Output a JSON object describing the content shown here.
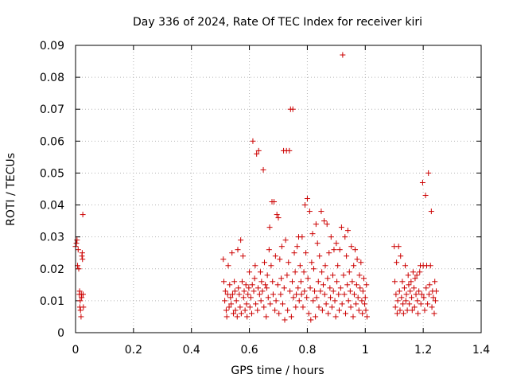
{
  "chart_data": {
    "type": "scatter",
    "title": "Day 336 of 2024, Rate Of TEC Index for receiver kiri",
    "xlabel": "GPS time / hours",
    "ylabel": "ROTI / TECUs",
    "xlim": [
      0,
      1.4
    ],
    "ylim": [
      0,
      0.09
    ],
    "grid": true,
    "marker": "+",
    "series_color": "#cc0000",
    "x_ticks": [
      0,
      0.2,
      0.4,
      0.6,
      0.8,
      1,
      1.2,
      1.4
    ],
    "x_tick_labels": [
      "0",
      "0.2",
      "0.4",
      "0.6",
      "0.8",
      "1",
      "1.2",
      "1.4"
    ],
    "y_ticks": [
      0,
      0.01,
      0.02,
      0.03,
      0.04,
      0.05,
      0.06,
      0.07,
      0.08,
      0.09
    ],
    "y_tick_labels": [
      "0",
      "0.01",
      "0.02",
      "0.03",
      "0.04",
      "0.05",
      "0.06",
      "0.07",
      "0.08",
      "0.09"
    ],
    "series": [
      {
        "name": "ROTI",
        "points": [
          [
            0.0,
            0.027
          ],
          [
            0.003,
            0.028
          ],
          [
            0.005,
            0.029
          ],
          [
            0.007,
            0.021
          ],
          [
            0.009,
            0.026
          ],
          [
            0.011,
            0.02
          ],
          [
            0.013,
            0.012
          ],
          [
            0.014,
            0.013
          ],
          [
            0.015,
            0.008
          ],
          [
            0.016,
            0.01
          ],
          [
            0.017,
            0.007
          ],
          [
            0.019,
            0.005
          ],
          [
            0.02,
            0.012
          ],
          [
            0.021,
            0.011
          ],
          [
            0.022,
            0.024
          ],
          [
            0.023,
            0.025
          ],
          [
            0.024,
            0.023
          ],
          [
            0.025,
            0.037
          ],
          [
            0.026,
            0.012
          ],
          [
            0.027,
            0.008
          ],
          [
            0.51,
            0.023
          ],
          [
            0.512,
            0.016
          ],
          [
            0.515,
            0.01
          ],
          [
            0.517,
            0.013
          ],
          [
            0.52,
            0.007
          ],
          [
            0.522,
            0.005
          ],
          [
            0.525,
            0.012
          ],
          [
            0.527,
            0.021
          ],
          [
            0.53,
            0.008
          ],
          [
            0.532,
            0.015
          ],
          [
            0.535,
            0.011
          ],
          [
            0.537,
            0.009
          ],
          [
            0.54,
            0.025
          ],
          [
            0.542,
            0.012
          ],
          [
            0.545,
            0.006
          ],
          [
            0.548,
            0.016
          ],
          [
            0.55,
            0.013
          ],
          [
            0.552,
            0.007
          ],
          [
            0.555,
            0.01
          ],
          [
            0.558,
            0.005
          ],
          [
            0.56,
            0.026
          ],
          [
            0.562,
            0.014
          ],
          [
            0.565,
            0.012
          ],
          [
            0.568,
            0.008
          ],
          [
            0.57,
            0.029
          ],
          [
            0.572,
            0.006
          ],
          [
            0.575,
            0.016
          ],
          [
            0.578,
            0.024
          ],
          [
            0.58,
            0.011
          ],
          [
            0.582,
            0.013
          ],
          [
            0.585,
            0.007
          ],
          [
            0.588,
            0.015
          ],
          [
            0.59,
            0.009
          ],
          [
            0.592,
            0.005
          ],
          [
            0.595,
            0.012
          ],
          [
            0.598,
            0.014
          ],
          [
            0.6,
            0.019
          ],
          [
            0.602,
            0.008
          ],
          [
            0.605,
            0.011
          ],
          [
            0.608,
            0.006
          ],
          [
            0.61,
            0.015
          ],
          [
            0.612,
            0.06
          ],
          [
            0.615,
            0.013
          ],
          [
            0.618,
            0.017
          ],
          [
            0.62,
            0.021
          ],
          [
            0.622,
            0.009
          ],
          [
            0.625,
            0.056
          ],
          [
            0.628,
            0.007
          ],
          [
            0.63,
            0.014
          ],
          [
            0.632,
            0.057
          ],
          [
            0.635,
            0.012
          ],
          [
            0.638,
            0.019
          ],
          [
            0.64,
            0.01
          ],
          [
            0.642,
            0.016
          ],
          [
            0.645,
            0.013
          ],
          [
            0.648,
            0.051
          ],
          [
            0.65,
            0.008
          ],
          [
            0.652,
            0.022
          ],
          [
            0.655,
            0.015
          ],
          [
            0.658,
            0.005
          ],
          [
            0.66,
            0.014
          ],
          [
            0.662,
            0.018
          ],
          [
            0.665,
            0.011
          ],
          [
            0.668,
            0.026
          ],
          [
            0.67,
            0.033
          ],
          [
            0.672,
            0.009
          ],
          [
            0.675,
            0.021
          ],
          [
            0.678,
            0.041
          ],
          [
            0.68,
            0.016
          ],
          [
            0.682,
            0.012
          ],
          [
            0.685,
            0.041
          ],
          [
            0.688,
            0.007
          ],
          [
            0.69,
            0.024
          ],
          [
            0.692,
            0.01
          ],
          [
            0.695,
            0.037
          ],
          [
            0.698,
            0.015
          ],
          [
            0.7,
            0.036
          ],
          [
            0.702,
            0.006
          ],
          [
            0.705,
            0.023
          ],
          [
            0.708,
            0.012
          ],
          [
            0.71,
            0.017
          ],
          [
            0.712,
            0.027
          ],
          [
            0.715,
            0.009
          ],
          [
            0.718,
            0.057
          ],
          [
            0.72,
            0.014
          ],
          [
            0.722,
            0.004
          ],
          [
            0.725,
            0.029
          ],
          [
            0.728,
            0.057
          ],
          [
            0.73,
            0.018
          ],
          [
            0.732,
            0.007
          ],
          [
            0.735,
            0.022
          ],
          [
            0.738,
            0.057
          ],
          [
            0.74,
            0.013
          ],
          [
            0.742,
            0.07
          ],
          [
            0.745,
            0.005
          ],
          [
            0.748,
            0.016
          ],
          [
            0.75,
            0.07
          ],
          [
            0.752,
            0.011
          ],
          [
            0.755,
            0.025
          ],
          [
            0.758,
            0.019
          ],
          [
            0.76,
            0.008
          ],
          [
            0.762,
            0.012
          ],
          [
            0.765,
            0.027
          ],
          [
            0.768,
            0.014
          ],
          [
            0.77,
            0.03
          ],
          [
            0.772,
            0.01
          ],
          [
            0.775,
            0.021
          ],
          [
            0.778,
            0.016
          ],
          [
            0.78,
            0.012
          ],
          [
            0.782,
            0.03
          ],
          [
            0.785,
            0.008
          ],
          [
            0.788,
            0.019
          ],
          [
            0.79,
            0.013
          ],
          [
            0.792,
            0.04
          ],
          [
            0.795,
            0.025
          ],
          [
            0.798,
            0.011
          ],
          [
            0.8,
            0.042
          ],
          [
            0.802,
            0.017
          ],
          [
            0.805,
            0.006
          ],
          [
            0.808,
            0.038
          ],
          [
            0.81,
            0.014
          ],
          [
            0.812,
            0.004
          ],
          [
            0.815,
            0.022
          ],
          [
            0.818,
            0.031
          ],
          [
            0.82,
            0.01
          ],
          [
            0.822,
            0.02
          ],
          [
            0.825,
            0.013
          ],
          [
            0.828,
            0.005
          ],
          [
            0.83,
            0.034
          ],
          [
            0.832,
            0.011
          ],
          [
            0.835,
            0.028
          ],
          [
            0.838,
            0.016
          ],
          [
            0.84,
            0.008
          ],
          [
            0.842,
            0.024
          ],
          [
            0.845,
            0.013
          ],
          [
            0.848,
            0.038
          ],
          [
            0.85,
            0.019
          ],
          [
            0.852,
            0.007
          ],
          [
            0.855,
            0.015
          ],
          [
            0.858,
            0.035
          ],
          [
            0.86,
            0.012
          ],
          [
            0.862,
            0.021
          ],
          [
            0.865,
            0.009
          ],
          [
            0.868,
            0.034
          ],
          [
            0.87,
            0.017
          ],
          [
            0.872,
            0.006
          ],
          [
            0.875,
            0.025
          ],
          [
            0.878,
            0.014
          ],
          [
            0.88,
            0.011
          ],
          [
            0.882,
            0.03
          ],
          [
            0.885,
            0.008
          ],
          [
            0.888,
            0.018
          ],
          [
            0.89,
            0.013
          ],
          [
            0.892,
            0.026
          ],
          [
            0.895,
            0.01
          ],
          [
            0.898,
            0.005
          ],
          [
            0.9,
            0.028
          ],
          [
            0.902,
            0.016
          ],
          [
            0.905,
            0.021
          ],
          [
            0.908,
            0.012
          ],
          [
            0.91,
            0.007
          ],
          [
            0.912,
            0.026
          ],
          [
            0.915,
            0.014
          ],
          [
            0.918,
            0.033
          ],
          [
            0.92,
            0.009
          ],
          [
            0.922,
            0.087
          ],
          [
            0.925,
            0.018
          ],
          [
            0.928,
            0.012
          ],
          [
            0.93,
            0.03
          ],
          [
            0.932,
            0.006
          ],
          [
            0.935,
            0.024
          ],
          [
            0.938,
            0.015
          ],
          [
            0.94,
            0.032
          ],
          [
            0.942,
            0.01
          ],
          [
            0.945,
            0.019
          ],
          [
            0.948,
            0.013
          ],
          [
            0.95,
            0.008
          ],
          [
            0.952,
            0.027
          ],
          [
            0.955,
            0.016
          ],
          [
            0.958,
            0.005
          ],
          [
            0.96,
            0.021
          ],
          [
            0.962,
            0.012
          ],
          [
            0.965,
            0.026
          ],
          [
            0.968,
            0.009
          ],
          [
            0.97,
            0.015
          ],
          [
            0.972,
            0.023
          ],
          [
            0.975,
            0.011
          ],
          [
            0.978,
            0.007
          ],
          [
            0.98,
            0.018
          ],
          [
            0.982,
            0.014
          ],
          [
            0.985,
            0.022
          ],
          [
            0.988,
            0.01
          ],
          [
            0.99,
            0.006
          ],
          [
            0.992,
            0.013
          ],
          [
            0.995,
            0.017
          ],
          [
            0.998,
            0.009
          ],
          [
            1.0,
            0.011
          ],
          [
            1.002,
            0.007
          ],
          [
            1.004,
            0.015
          ],
          [
            1.006,
            0.005
          ],
          [
            1.1,
            0.027
          ],
          [
            1.102,
            0.016
          ],
          [
            1.104,
            0.008
          ],
          [
            1.106,
            0.012
          ],
          [
            1.108,
            0.022
          ],
          [
            1.11,
            0.006
          ],
          [
            1.112,
            0.01
          ],
          [
            1.115,
            0.027
          ],
          [
            1.118,
            0.013
          ],
          [
            1.12,
            0.007
          ],
          [
            1.122,
            0.024
          ],
          [
            1.125,
            0.011
          ],
          [
            1.128,
            0.016
          ],
          [
            1.13,
            0.009
          ],
          [
            1.132,
            0.006
          ],
          [
            1.135,
            0.014
          ],
          [
            1.138,
            0.021
          ],
          [
            1.14,
            0.01
          ],
          [
            1.142,
            0.012
          ],
          [
            1.145,
            0.007
          ],
          [
            1.148,
            0.018
          ],
          [
            1.15,
            0.015
          ],
          [
            1.152,
            0.009
          ],
          [
            1.155,
            0.013
          ],
          [
            1.158,
            0.016
          ],
          [
            1.16,
            0.011
          ],
          [
            1.162,
            0.007
          ],
          [
            1.165,
            0.019
          ],
          [
            1.168,
            0.014
          ],
          [
            1.17,
            0.008
          ],
          [
            1.172,
            0.017
          ],
          [
            1.175,
            0.012
          ],
          [
            1.178,
            0.018
          ],
          [
            1.18,
            0.01
          ],
          [
            1.182,
            0.006
          ],
          [
            1.185,
            0.013
          ],
          [
            1.188,
            0.019
          ],
          [
            1.19,
            0.021
          ],
          [
            1.192,
            0.009
          ],
          [
            1.195,
            0.012
          ],
          [
            1.198,
            0.047
          ],
          [
            1.2,
            0.021
          ],
          [
            1.202,
            0.011
          ],
          [
            1.205,
            0.007
          ],
          [
            1.208,
            0.043
          ],
          [
            1.21,
            0.014
          ],
          [
            1.212,
            0.021
          ],
          [
            1.215,
            0.009
          ],
          [
            1.218,
            0.05
          ],
          [
            1.22,
            0.012
          ],
          [
            1.222,
            0.015
          ],
          [
            1.225,
            0.021
          ],
          [
            1.228,
            0.038
          ],
          [
            1.23,
            0.008
          ],
          [
            1.232,
            0.013
          ],
          [
            1.235,
            0.011
          ],
          [
            1.238,
            0.006
          ],
          [
            1.24,
            0.016
          ],
          [
            1.242,
            0.01
          ],
          [
            1.245,
            0.013
          ]
        ]
      }
    ]
  }
}
